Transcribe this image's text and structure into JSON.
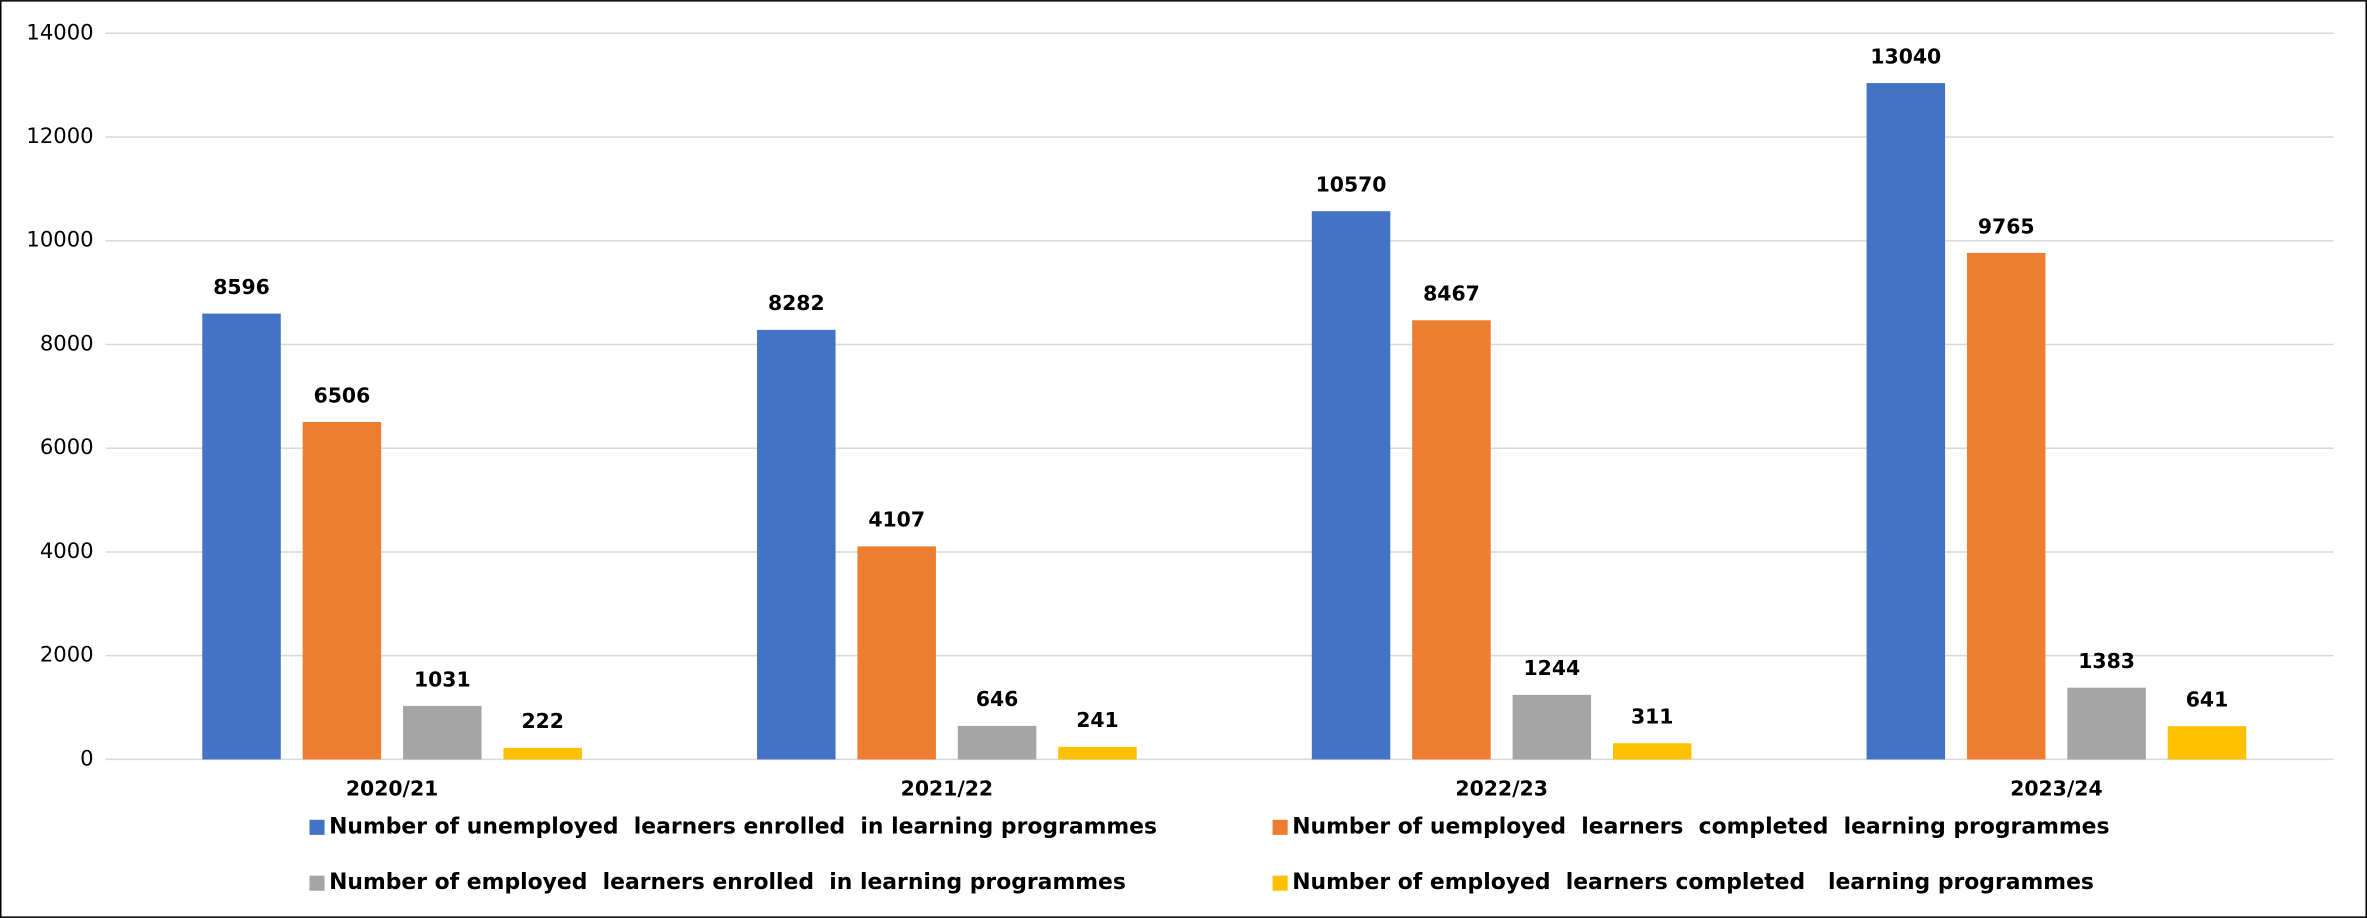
{
  "chart_data": {
    "type": "bar",
    "categories": [
      "2020/21",
      "2021/22",
      "2022/23",
      "2023/24"
    ],
    "series": [
      {
        "name": "Number of unemployed  learners enrolled  in learning programmes",
        "color": "#4472c4",
        "values": [
          8596,
          8282,
          10570,
          13040
        ]
      },
      {
        "name": "Number of uemployed  learners  completed  learning programmes",
        "color": "#ed7d31",
        "values": [
          6506,
          4107,
          8467,
          9765
        ]
      },
      {
        "name": "Number of employed  learners enrolled  in learning programmes",
        "color": "#a5a5a5",
        "values": [
          1031,
          646,
          1244,
          1383
        ]
      },
      {
        "name": "Number of employed  learners completed   learning programmes",
        "color": "#ffc000",
        "values": [
          222,
          241,
          311,
          641
        ]
      }
    ],
    "ylim": [
      0,
      14000
    ],
    "yticks": [
      0,
      2000,
      4000,
      6000,
      8000,
      10000,
      12000,
      14000
    ],
    "grid": true,
    "legend": "bottom"
  }
}
